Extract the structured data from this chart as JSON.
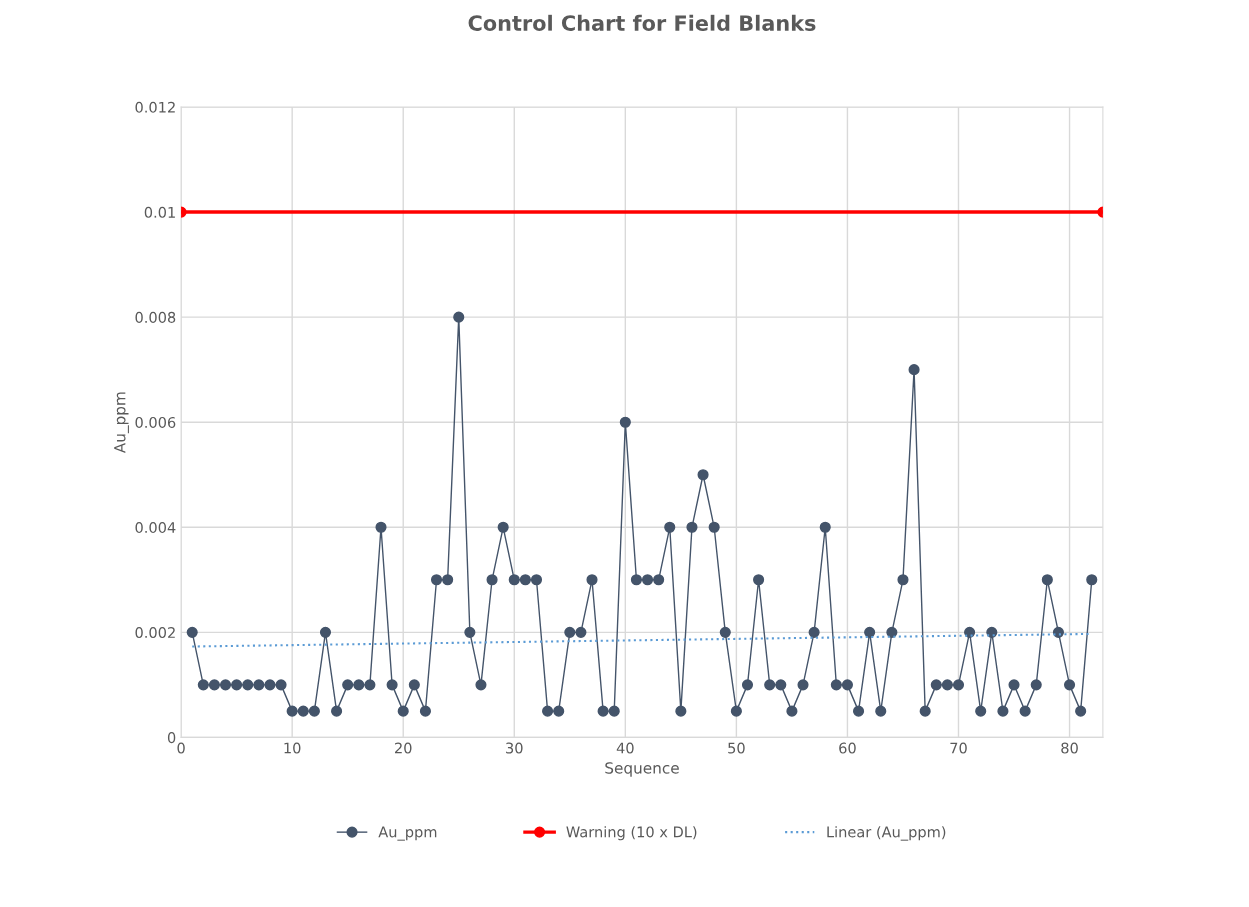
{
  "chart_data": {
    "type": "line",
    "title": "Control Chart for Field Blanks",
    "xlabel": "Sequence",
    "ylabel": "Au_ppm",
    "x": [
      1,
      2,
      3,
      4,
      5,
      6,
      7,
      8,
      9,
      10,
      11,
      12,
      13,
      14,
      15,
      16,
      17,
      18,
      19,
      20,
      21,
      22,
      23,
      24,
      25,
      26,
      27,
      28,
      29,
      30,
      31,
      32,
      33,
      34,
      35,
      36,
      37,
      38,
      39,
      40,
      41,
      42,
      43,
      44,
      45,
      46,
      47,
      48,
      49,
      50,
      51,
      52,
      53,
      54,
      55,
      56,
      57,
      58,
      59,
      60,
      61,
      62,
      63,
      64,
      65,
      66,
      67,
      68,
      69,
      70,
      71,
      72,
      73,
      74,
      75,
      76,
      77,
      78,
      79,
      80,
      81,
      82
    ],
    "series": [
      {
        "name": "Au_ppm",
        "color": "#44546a",
        "marker": "circle",
        "line_style": "solid",
        "values": [
          0.002,
          0.001,
          0.001,
          0.001,
          0.001,
          0.001,
          0.001,
          0.001,
          0.001,
          0.0005,
          0.0005,
          0.0005,
          0.002,
          0.0005,
          0.001,
          0.001,
          0.001,
          0.004,
          0.001,
          0.0005,
          0.001,
          0.0005,
          0.003,
          0.003,
          0.008,
          0.002,
          0.001,
          0.003,
          0.004,
          0.003,
          0.003,
          0.003,
          0.0005,
          0.0005,
          0.002,
          0.002,
          0.003,
          0.0005,
          0.0005,
          0.006,
          0.003,
          0.003,
          0.003,
          0.004,
          0.0005,
          0.004,
          0.005,
          0.004,
          0.002,
          0.0005,
          0.001,
          0.003,
          0.001,
          0.001,
          0.0005,
          0.001,
          0.002,
          0.004,
          0.001,
          0.001,
          0.0005,
          0.002,
          0.0005,
          0.002,
          0.003,
          0.007,
          0.0005,
          0.001,
          0.001,
          0.001,
          0.002,
          0.0005,
          0.002,
          0.0005,
          0.001,
          0.0005,
          0.001,
          0.003,
          0.002,
          0.001,
          0.0005,
          0.003
        ]
      },
      {
        "name": "Warning (10 x DL)",
        "color": "#ff0000",
        "marker": "circle",
        "line_style": "solid",
        "x": [
          0,
          83
        ],
        "values": [
          0.01,
          0.01
        ]
      },
      {
        "name": "Linear (Au_ppm)",
        "color": "#5b9bd5",
        "marker": "none",
        "line_style": "dotted",
        "x": [
          1,
          82
        ],
        "values": [
          0.00173,
          0.00197
        ]
      }
    ],
    "xlim": [
      0,
      83
    ],
    "xticks": [
      0,
      10,
      20,
      30,
      40,
      50,
      60,
      70,
      80
    ],
    "ylim": [
      0,
      0.012
    ],
    "yticks": [
      0,
      0.002,
      0.004,
      0.006,
      0.008,
      0.01,
      0.012
    ],
    "grid": true,
    "legend": "bottom"
  }
}
